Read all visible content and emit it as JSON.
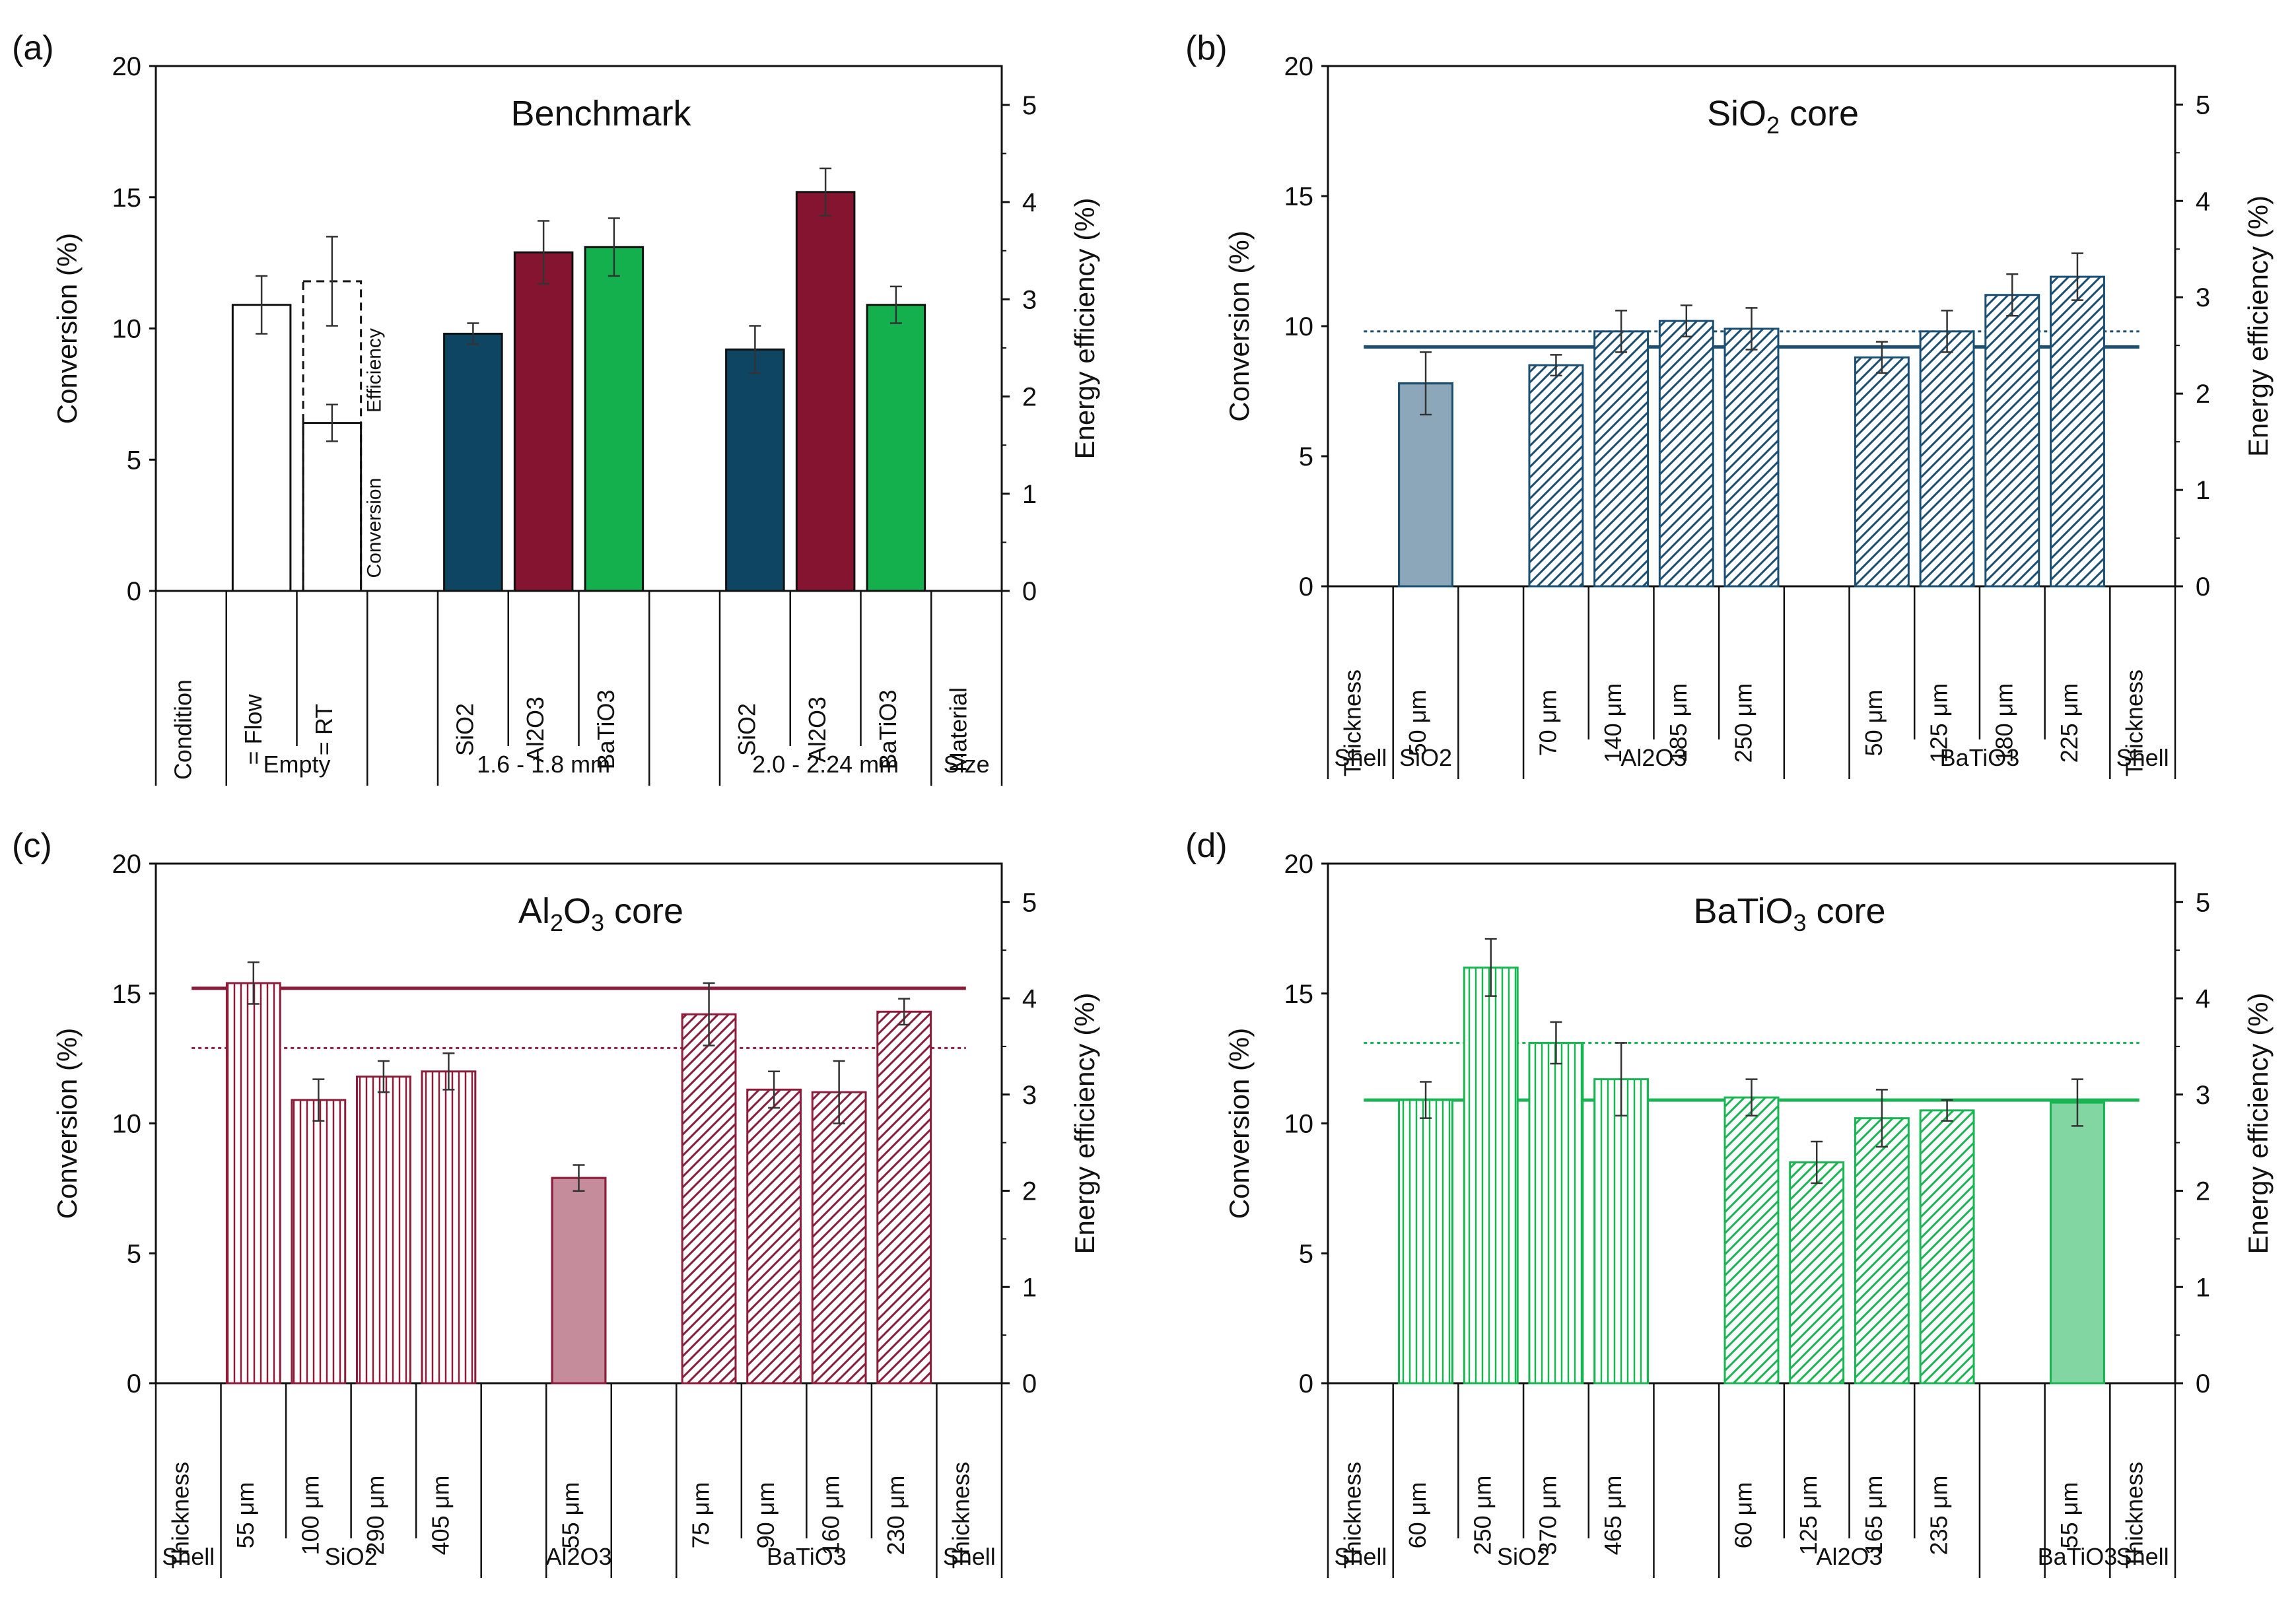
{
  "figure": {
    "y_left_label": "Conversion (%)",
    "y_right_label": "Energy efficiency (%)",
    "y_left_ticks": [
      "0",
      "5",
      "10",
      "15",
      "20"
    ],
    "y_right_ticks": [
      "0",
      "1",
      "2",
      "3",
      "4",
      "5"
    ]
  },
  "chart_data": [
    {
      "panel": "(a)",
      "type": "bar",
      "title": "Benchmark",
      "ylabel": "Conversion (%)",
      "y2label": "Energy efficiency (%)",
      "ylim": [
        0,
        20
      ],
      "y2lim": [
        0,
        5.4
      ],
      "row1_label": "Condition",
      "row1_end_label": "Material",
      "row2_end_label": "Size",
      "categories": [
        "= Flow",
        "= RT",
        "SiO2",
        "Al2O3",
        "BaTiO3",
        "SiO2",
        "Al2O3",
        "BaTiO3"
      ],
      "slots": [
        1,
        2,
        4,
        5,
        6,
        8,
        9,
        10
      ],
      "values": [
        10.9,
        6.4,
        9.8,
        12.9,
        13.1,
        9.2,
        15.2,
        10.9
      ],
      "errors": [
        1.1,
        0.7,
        0.4,
        1.2,
        1.1,
        0.9,
        0.9,
        0.7
      ],
      "colors": [
        "#ffffff",
        "#ffffff",
        "#0e4563",
        "#84142f",
        "#13b04d",
        "#0e4563",
        "#84142f",
        "#13b04d"
      ],
      "efficiency_bar": {
        "slot": 2,
        "value": 11.8,
        "error": 1.7,
        "efficiency_label": "Efficiency",
        "conversion_label": "Conversion"
      },
      "groups": [
        {
          "label": "Empty",
          "from": 1,
          "to": 2
        },
        {
          "label": "1.6 - 1.8 mm",
          "from": 4,
          "to": 6
        },
        {
          "label": "2.0 - 2.24 mm",
          "from": 8,
          "to": 10
        }
      ]
    },
    {
      "panel": "(b)",
      "type": "bar",
      "title": "SiO",
      "title_sub": "2",
      "title_suffix": " core",
      "ylabel": "Conversion (%)",
      "y2label": "Energy efficiency (%)",
      "ylim": [
        0,
        20
      ],
      "y2lim": [
        0,
        5.4
      ],
      "row1_label": "Thickness",
      "row1_end_label": "Thickness",
      "row2_label": "Shell",
      "row2_end_label": "Shell",
      "base_color": "#1a4f73",
      "categories": [
        "50 μm",
        "70 μm",
        "140 μm",
        "185 μm",
        "250 μm",
        "50 μm",
        "125 μm",
        "180 μm",
        "225 μm"
      ],
      "slots": [
        1,
        3,
        4,
        5,
        6,
        8,
        9,
        10,
        11
      ],
      "values": [
        7.8,
        8.5,
        9.8,
        10.2,
        9.9,
        8.8,
        9.8,
        11.2,
        11.9
      ],
      "errors": [
        1.2,
        0.4,
        0.8,
        0.6,
        0.8,
        0.6,
        0.8,
        0.8,
        0.9
      ],
      "patterns": [
        "solid",
        "diag",
        "diag",
        "diag",
        "diag",
        "diag",
        "diag",
        "diag",
        "diag"
      ],
      "reference_lines": {
        "conversion": 9.2,
        "efficiency": 9.8
      },
      "groups": [
        {
          "label": "SiO2",
          "from": 1,
          "to": 1
        },
        {
          "label": "Al2O3",
          "from": 3,
          "to": 6
        },
        {
          "label": "BaTiO3",
          "from": 8,
          "to": 11
        }
      ]
    },
    {
      "panel": "(c)",
      "type": "bar",
      "title": "Al",
      "title_sub": "2",
      "title_mid": "O",
      "title_sub2": "3",
      "title_suffix": " core",
      "ylabel": "Conversion (%)",
      "y2label": "Energy efficiency (%)",
      "ylim": [
        0,
        20
      ],
      "y2lim": [
        0,
        5.4
      ],
      "row1_label": "Thickness",
      "row1_end_label": "Thickness",
      "row2_label": "Shell",
      "row2_end_label": "Shell",
      "base_color": "#8c1c3a",
      "categories": [
        "55 μm",
        "100 μm",
        "290 μm",
        "405 μm",
        "55 μm",
        "75 μm",
        "90 μm",
        "160 μm",
        "230 μm"
      ],
      "slots": [
        1,
        2,
        3,
        4,
        6,
        8,
        9,
        10,
        11
      ],
      "values": [
        15.4,
        10.9,
        11.8,
        12.0,
        7.9,
        14.2,
        11.3,
        11.2,
        14.3
      ],
      "errors": [
        0.8,
        0.8,
        0.6,
        0.7,
        0.5,
        1.2,
        0.7,
        1.2,
        0.5
      ],
      "patterns": [
        "vert",
        "vert",
        "vert",
        "vert",
        "solid",
        "diag",
        "diag",
        "diag",
        "diag"
      ],
      "reference_lines": {
        "conversion": 15.2,
        "efficiency": 12.9
      },
      "groups": [
        {
          "label": "SiO2",
          "from": 1,
          "to": 4
        },
        {
          "label": "Al2O3",
          "from": 6,
          "to": 6
        },
        {
          "label": "BaTiO3",
          "from": 8,
          "to": 11
        }
      ]
    },
    {
      "panel": "(d)",
      "type": "bar",
      "title": "BaTiO",
      "title_sub": "3",
      "title_suffix": " core",
      "ylabel": "Conversion (%)",
      "y2label": "Energy efficiency (%)",
      "ylim": [
        0,
        20
      ],
      "y2lim": [
        0,
        5.4
      ],
      "row1_label": "Thickness",
      "row1_end_label": "Thickness",
      "row2_label": "Shell",
      "row2_end_label": "Shell",
      "base_color": "#19b553",
      "categories": [
        "60 μm",
        "250 μm",
        "370 μm",
        "465 μm",
        "60 μm",
        "125 μm",
        "165 μm",
        "235 μm",
        "55 μm"
      ],
      "slots": [
        1,
        2,
        3,
        4,
        6,
        7,
        8,
        9,
        11
      ],
      "values": [
        10.9,
        16.0,
        13.1,
        11.7,
        11.0,
        8.5,
        10.2,
        10.5,
        10.8
      ],
      "errors": [
        0.7,
        1.1,
        0.8,
        1.4,
        0.7,
        0.8,
        1.1,
        0.4,
        0.9
      ],
      "patterns": [
        "vert",
        "vert",
        "vert",
        "vert",
        "diag",
        "diag",
        "diag",
        "diag",
        "solid"
      ],
      "reference_lines": {
        "conversion": 10.9,
        "efficiency": 13.1
      },
      "groups": [
        {
          "label": "SiO2",
          "from": 1,
          "to": 4
        },
        {
          "label": "Al2O3",
          "from": 6,
          "to": 9
        },
        {
          "label": "BaTiO3",
          "from": 11,
          "to": 11
        }
      ]
    }
  ]
}
